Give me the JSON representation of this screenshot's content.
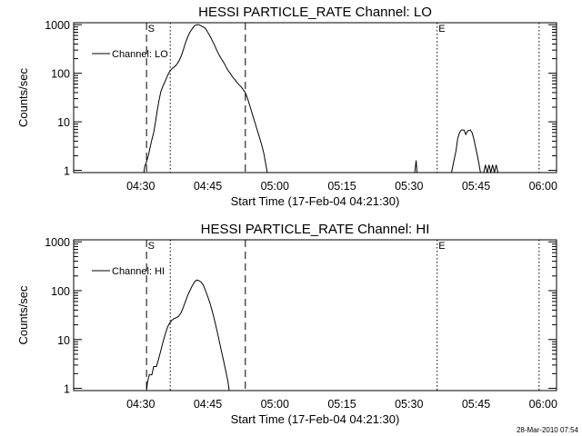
{
  "footer": {
    "timestamp": "28-Mar-2010 07:54"
  },
  "chart_data": [
    {
      "type": "line",
      "title": "HESSI PARTICLE_RATE Channel: LO",
      "xlabel": "Start Time (17-Feb-04 04:21:30)",
      "ylabel": "Counts/sec",
      "yscale": "log",
      "ylim": [
        0.9,
        1100
      ],
      "xlim_minutes": [
        -6.5,
        101.5
      ],
      "xticks": [
        {
          "t": 8.5,
          "label": "04:30"
        },
        {
          "t": 23.5,
          "label": "04:45"
        },
        {
          "t": 38.5,
          "label": "05:00"
        },
        {
          "t": 53.5,
          "label": "05:15"
        },
        {
          "t": 68.5,
          "label": "05:30"
        },
        {
          "t": 83.5,
          "label": "05:45"
        },
        {
          "t": 98.5,
          "label": "06:00"
        }
      ],
      "yticks": [
        {
          "v": 1,
          "label": "1"
        },
        {
          "v": 10,
          "label": "10"
        },
        {
          "v": 100,
          "label": "100"
        },
        {
          "v": 1000,
          "label": "1000"
        }
      ],
      "legend": {
        "label": "Channel: LO",
        "placement": "top-left"
      },
      "markers": [
        {
          "t": 9.8,
          "style": "dashed",
          "label": "S"
        },
        {
          "t": 15.1,
          "style": "dotted",
          "label": ""
        },
        {
          "t": 31.9,
          "style": "dashed",
          "label": ""
        },
        {
          "t": 74.8,
          "style": "dotted",
          "label": "E"
        },
        {
          "t": 97.6,
          "style": "dotted",
          "label": ""
        }
      ],
      "series": [
        {
          "name": "Channel: LO",
          "segments": [
            [
              [
                9.2,
                0.9
              ],
              [
                9.4,
                1.2
              ],
              [
                9.8,
                1.5
              ],
              [
                10.2,
                2
              ],
              [
                10.6,
                3
              ],
              [
                11,
                4.3
              ],
              [
                11.4,
                6
              ],
              [
                11.8,
                10
              ],
              [
                12.2,
                17
              ],
              [
                12.6,
                28
              ],
              [
                13,
                42
              ],
              [
                13.5,
                55
              ],
              [
                14,
                70
              ],
              [
                14.5,
                90
              ],
              [
                15,
                110
              ],
              [
                15.5,
                125
              ],
              [
                16,
                135
              ],
              [
                16.5,
                150
              ],
              [
                17,
                175
              ],
              [
                17.5,
                220
              ],
              [
                18,
                300
              ],
              [
                18.5,
                420
              ],
              [
                19,
                560
              ],
              [
                19.5,
                700
              ],
              [
                20,
                820
              ],
              [
                20.5,
                950
              ],
              [
                21,
                1000
              ],
              [
                21.5,
                1000
              ],
              [
                22,
                950
              ],
              [
                22.5,
                900
              ],
              [
                23,
                830
              ],
              [
                23.5,
                700
              ],
              [
                24,
                580
              ],
              [
                24.5,
                470
              ],
              [
                25,
                380
              ],
              [
                25.5,
                300
              ],
              [
                26,
                240
              ],
              [
                26.5,
                200
              ],
              [
                27,
                170
              ],
              [
                27.5,
                140
              ],
              [
                28,
                115
              ],
              [
                28.5,
                100
              ],
              [
                29,
                85
              ],
              [
                29.5,
                75
              ],
              [
                30,
                65
              ],
              [
                30.5,
                58
              ],
              [
                31,
                52
              ],
              [
                31.5,
                45
              ],
              [
                32,
                38
              ],
              [
                32.5,
                28
              ],
              [
                33,
                20
              ],
              [
                33.5,
                14
              ],
              [
                34,
                10
              ],
              [
                34.5,
                7
              ],
              [
                35,
                5
              ],
              [
                35.5,
                3.5
              ],
              [
                36,
                2.3
              ],
              [
                36.5,
                1.3
              ],
              [
                36.8,
                0.9
              ]
            ],
            [
              [
                69.8,
                0.9
              ],
              [
                70.1,
                1.6
              ],
              [
                70.3,
                0.9
              ]
            ],
            [
              [
                78,
                0.9
              ],
              [
                78.5,
                1.5
              ],
              [
                79,
                2.5
              ],
              [
                79.4,
                4.5
              ],
              [
                79.8,
                6
              ],
              [
                80.2,
                6.8
              ],
              [
                80.8,
                6.8
              ],
              [
                81.2,
                5.5
              ],
              [
                81.6,
                6.5
              ],
              [
                82.2,
                6.8
              ],
              [
                82.6,
                6
              ],
              [
                83,
                4.5
              ],
              [
                83.4,
                3
              ],
              [
                83.8,
                2
              ],
              [
                84.2,
                1.3
              ],
              [
                84.5,
                0.9
              ]
            ],
            [
              [
                85.2,
                0.9
              ],
              [
                85.6,
                1.3
              ],
              [
                86,
                0.9
              ],
              [
                86.4,
                1.3
              ],
              [
                86.8,
                0.9
              ],
              [
                87.2,
                1.3
              ],
              [
                87.6,
                0.9
              ],
              [
                88,
                1.3
              ],
              [
                88.4,
                0.9
              ]
            ]
          ]
        }
      ]
    },
    {
      "type": "line",
      "title": "HESSI PARTICLE_RATE Channel: HI",
      "xlabel": "Start Time (17-Feb-04 04:21:30)",
      "ylabel": "Counts/sec",
      "yscale": "log",
      "ylim": [
        0.9,
        1100
      ],
      "xlim_minutes": [
        -6.5,
        101.5
      ],
      "xticks": [
        {
          "t": 8.5,
          "label": "04:30"
        },
        {
          "t": 23.5,
          "label": "04:45"
        },
        {
          "t": 38.5,
          "label": "05:00"
        },
        {
          "t": 53.5,
          "label": "05:15"
        },
        {
          "t": 68.5,
          "label": "05:30"
        },
        {
          "t": 83.5,
          "label": "05:45"
        },
        {
          "t": 98.5,
          "label": "06:00"
        }
      ],
      "yticks": [
        {
          "v": 1,
          "label": "1"
        },
        {
          "v": 10,
          "label": "10"
        },
        {
          "v": 100,
          "label": "100"
        },
        {
          "v": 1000,
          "label": "1000"
        }
      ],
      "legend": {
        "label": "Channel: HI",
        "placement": "top-left"
      },
      "markers": [
        {
          "t": 9.8,
          "style": "dashed",
          "label": "S"
        },
        {
          "t": 15.1,
          "style": "dotted",
          "label": ""
        },
        {
          "t": 31.9,
          "style": "dashed",
          "label": ""
        },
        {
          "t": 74.8,
          "style": "dotted",
          "label": "E"
        },
        {
          "t": 97.6,
          "style": "dotted",
          "label": ""
        }
      ],
      "series": [
        {
          "name": "Channel: HI",
          "segments": [
            [
              [
                9.8,
                0.9
              ],
              [
                10,
                1.3
              ],
              [
                10.4,
                1.9
              ],
              [
                11,
                1.9
              ],
              [
                11.4,
                2.8
              ],
              [
                12,
                2.8
              ],
              [
                12.5,
                4
              ],
              [
                13,
                6
              ],
              [
                13.5,
                9
              ],
              [
                14,
                13
              ],
              [
                14.5,
                18
              ],
              [
                15,
                22
              ],
              [
                15.5,
                25
              ],
              [
                16,
                27
              ],
              [
                16.5,
                28
              ],
              [
                17,
                30
              ],
              [
                17.5,
                35
              ],
              [
                18,
                45
              ],
              [
                18.5,
                60
              ],
              [
                19,
                80
              ],
              [
                19.5,
                100
              ],
              [
                20,
                125
              ],
              [
                20.5,
                150
              ],
              [
                21,
                165
              ],
              [
                21.5,
                160
              ],
              [
                22,
                150
              ],
              [
                22.5,
                130
              ],
              [
                23,
                100
              ],
              [
                23.5,
                75
              ],
              [
                24,
                55
              ],
              [
                24.5,
                38
              ],
              [
                25,
                25
              ],
              [
                25.5,
                16
              ],
              [
                26,
                10
              ],
              [
                26.5,
                6
              ],
              [
                27,
                3.8
              ],
              [
                27.5,
                2.3
              ],
              [
                28,
                1.4
              ],
              [
                28.3,
                0.9
              ]
            ]
          ]
        }
      ]
    }
  ]
}
